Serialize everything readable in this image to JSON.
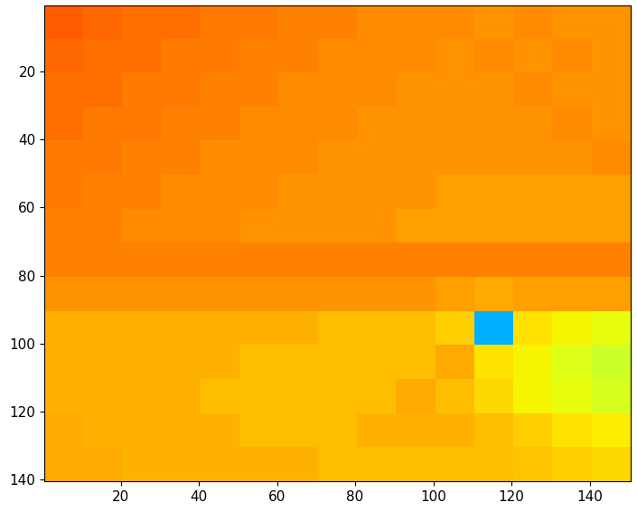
{
  "chart_data": {
    "type": "heatmap",
    "color": "jet",
    "xlim": [
      0.5,
      150.5
    ],
    "ylim": [
      140.5,
      0.5
    ],
    "xticks": [
      20,
      40,
      60,
      80,
      100,
      120,
      140
    ],
    "yticks": [
      20,
      40,
      60,
      80,
      100,
      120,
      140
    ],
    "zlim": [
      0.05,
      1.05
    ],
    "cells": [
      [
        0.86,
        0.85,
        0.84,
        0.84,
        0.83,
        0.83,
        0.82,
        0.82,
        0.81,
        0.81,
        0.81,
        0.8,
        0.81,
        0.8,
        0.8
      ],
      [
        0.85,
        0.84,
        0.84,
        0.83,
        0.83,
        0.82,
        0.82,
        0.81,
        0.81,
        0.81,
        0.8,
        0.81,
        0.8,
        0.81,
        0.8
      ],
      [
        0.84,
        0.84,
        0.83,
        0.83,
        0.82,
        0.82,
        0.81,
        0.81,
        0.81,
        0.8,
        0.8,
        0.8,
        0.81,
        0.8,
        0.8
      ],
      [
        0.84,
        0.83,
        0.83,
        0.82,
        0.82,
        0.81,
        0.81,
        0.81,
        0.8,
        0.8,
        0.8,
        0.8,
        0.8,
        0.81,
        0.8
      ],
      [
        0.83,
        0.83,
        0.82,
        0.82,
        0.81,
        0.81,
        0.81,
        0.8,
        0.8,
        0.8,
        0.8,
        0.8,
        0.8,
        0.8,
        0.81
      ],
      [
        0.83,
        0.82,
        0.82,
        0.81,
        0.81,
        0.81,
        0.8,
        0.8,
        0.8,
        0.8,
        0.79,
        0.79,
        0.79,
        0.79,
        0.79
      ],
      [
        0.82,
        0.82,
        0.81,
        0.81,
        0.81,
        0.8,
        0.8,
        0.8,
        0.8,
        0.79,
        0.79,
        0.79,
        0.79,
        0.79,
        0.79
      ],
      [
        0.82,
        0.82,
        0.82,
        0.82,
        0.82,
        0.82,
        0.82,
        0.82,
        0.82,
        0.82,
        0.82,
        0.82,
        0.82,
        0.82,
        0.82
      ],
      [
        0.8,
        0.8,
        0.8,
        0.8,
        0.8,
        0.8,
        0.8,
        0.8,
        0.8,
        0.8,
        0.79,
        0.78,
        0.79,
        0.79,
        0.79
      ],
      [
        0.77,
        0.77,
        0.77,
        0.77,
        0.77,
        0.77,
        0.77,
        0.76,
        0.76,
        0.76,
        0.74,
        0.35,
        0.72,
        0.7,
        0.68
      ],
      [
        0.77,
        0.77,
        0.77,
        0.77,
        0.77,
        0.76,
        0.76,
        0.76,
        0.76,
        0.76,
        0.78,
        0.72,
        0.7,
        0.67,
        0.65
      ],
      [
        0.77,
        0.77,
        0.77,
        0.77,
        0.76,
        0.76,
        0.76,
        0.76,
        0.76,
        0.78,
        0.76,
        0.73,
        0.7,
        0.68,
        0.66
      ],
      [
        0.78,
        0.77,
        0.77,
        0.77,
        0.77,
        0.76,
        0.76,
        0.76,
        0.77,
        0.77,
        0.77,
        0.76,
        0.74,
        0.72,
        0.71
      ],
      [
        0.78,
        0.78,
        0.77,
        0.77,
        0.77,
        0.77,
        0.77,
        0.76,
        0.76,
        0.76,
        0.76,
        0.76,
        0.75,
        0.74,
        0.73
      ]
    ]
  }
}
